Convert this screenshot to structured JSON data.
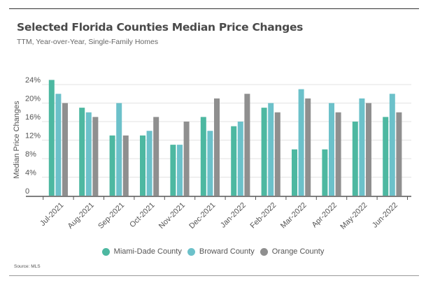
{
  "chart_data": {
    "type": "bar",
    "title": "Selected Florida Counties Median Price Changes",
    "subtitle": "TTM, Year-over-Year, Single-Family Homes",
    "xlabel": "",
    "ylabel": "Median Price Changes",
    "ylim": [
      0,
      24
    ],
    "yticks": [
      0,
      4,
      8,
      12,
      16,
      20,
      24
    ],
    "ytick_labels": [
      "0",
      "4%",
      "8%",
      "12%",
      "16%",
      "20%",
      "24%"
    ],
    "grid": true,
    "legend_position": "bottom",
    "categories": [
      "Jul-2021",
      "Aug-2021",
      "Sep-2021",
      "Oct-2021",
      "Nov-2021",
      "Dec-2021",
      "Jan-2022",
      "Feb-2022",
      "Mar-2022",
      "Apr-2022",
      "May-2022",
      "Jun-2022"
    ],
    "series": [
      {
        "name": "Miami-Dade County",
        "color": "#4db8a1",
        "values": [
          25,
          19,
          13,
          13,
          11,
          17,
          15,
          19,
          10,
          10,
          16,
          17
        ]
      },
      {
        "name": "Broward County",
        "color": "#6cc1ca",
        "values": [
          22,
          18,
          20,
          14,
          11,
          14,
          16,
          20,
          23,
          20,
          21,
          22
        ]
      },
      {
        "name": "Orange County",
        "color": "#8f8f8f",
        "values": [
          20,
          17,
          13,
          17,
          16,
          21,
          22,
          18,
          21,
          18,
          20,
          18
        ]
      }
    ]
  },
  "source": "Source: MLS"
}
